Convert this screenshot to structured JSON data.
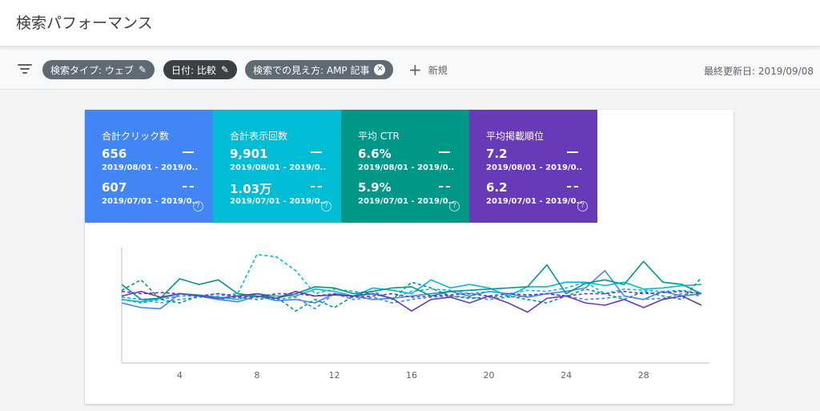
{
  "header": {
    "title": "検索パフォーマンス"
  },
  "filters": {
    "chips": [
      {
        "label": "検索タイプ: ウェブ",
        "icon": "pencil-icon",
        "color": "#5f6a74"
      },
      {
        "label": "日付: 比較",
        "icon": "pencil-icon",
        "color": "#3c4043"
      },
      {
        "label": "検索での見え方: AMP 記事",
        "icon": "close-circle-icon",
        "color": "#5f6a74"
      }
    ],
    "new_label": "新規",
    "last_updated": "最終更新日: 2019/09/08"
  },
  "metrics": [
    {
      "title": "合計クリック数",
      "value": "656",
      "range": "2019/08/01 - 2019/0...",
      "prev_value": "607",
      "prev_range": "2019/07/01 - 2019/0...",
      "color": "#4285f4"
    },
    {
      "title": "合計表示回数",
      "value": "9,901",
      "range": "2019/08/01 - 2019/0...",
      "prev_value": "1.03万",
      "prev_range": "2019/07/01 - 2019/0...",
      "color": "#00bcd4"
    },
    {
      "title": "平均 CTR",
      "value": "6.6%",
      "range": "2019/08/01 - 2019/0...",
      "prev_value": "5.9%",
      "prev_range": "2019/07/01 - 2019/0...",
      "color": "#009688"
    },
    {
      "title": "平均掲載順位",
      "value": "7.2",
      "range": "2019/08/01 - 2019/0...",
      "prev_value": "6.2",
      "prev_range": "2019/07/01 - 2019/0...",
      "color": "#673ab7"
    }
  ],
  "chart_data": {
    "type": "line",
    "x": [
      1,
      2,
      3,
      4,
      5,
      6,
      7,
      8,
      9,
      10,
      11,
      12,
      13,
      14,
      15,
      16,
      17,
      18,
      19,
      20,
      21,
      22,
      23,
      24,
      25,
      26,
      27,
      28,
      29,
      30,
      31
    ],
    "x_ticks": [
      "4",
      "8",
      "12",
      "16",
      "20",
      "24",
      "28"
    ],
    "x_tick_values": [
      4,
      8,
      12,
      16,
      20,
      24,
      28
    ],
    "ylim": [
      0,
      100
    ],
    "grid": false,
    "series": [
      {
        "color": "#4285f4",
        "style": "solid",
        "values": [
          52,
          48,
          47,
          60,
          58,
          55,
          53,
          58,
          54,
          55,
          52,
          60,
          58,
          55,
          56,
          58,
          60,
          62,
          58,
          62,
          60,
          57,
          60,
          62,
          65,
          80,
          58,
          55,
          62,
          58,
          60
        ]
      },
      {
        "color": "#4285f4",
        "style": "dashed",
        "values": [
          55,
          52,
          55,
          58,
          58,
          55,
          57,
          58,
          55,
          57,
          47,
          60,
          55,
          57,
          52,
          55,
          57,
          58,
          57,
          55,
          57,
          58,
          60,
          58,
          55,
          56,
          58,
          55,
          56,
          60,
          58
        ]
      },
      {
        "color": "#00bcd4",
        "style": "solid",
        "values": [
          55,
          53,
          56,
          60,
          59,
          57,
          55,
          60,
          58,
          58,
          64,
          62,
          58,
          65,
          63,
          60,
          72,
          65,
          68,
          65,
          58,
          66,
          66,
          70,
          70,
          67,
          70,
          64,
          65,
          67,
          68
        ]
      },
      {
        "color": "#00bcd4",
        "style": "dashed",
        "values": [
          57,
          55,
          52,
          55,
          57,
          58,
          60,
          94,
          92,
          80,
          60,
          64,
          62,
          60,
          56,
          62,
          64,
          63,
          60,
          62,
          60,
          63,
          62,
          65,
          70,
          60,
          64,
          63,
          62,
          63,
          60
        ]
      },
      {
        "color": "#009688",
        "style": "solid",
        "values": [
          68,
          55,
          56,
          73,
          68,
          72,
          60,
          58,
          56,
          60,
          66,
          65,
          60,
          62,
          65,
          66,
          58,
          62,
          63,
          64,
          65,
          66,
          85,
          60,
          69,
          72,
          68,
          88,
          70,
          68,
          60
        ]
      },
      {
        "color": "#009688",
        "style": "dashed",
        "values": [
          63,
          72,
          55,
          52,
          58,
          60,
          57,
          55,
          57,
          45,
          55,
          48,
          58,
          62,
          55,
          70,
          65,
          58,
          56,
          57,
          58,
          55,
          52,
          58,
          64,
          60,
          55,
          62,
          58,
          55,
          74
        ]
      },
      {
        "color": "#673ab7",
        "style": "solid",
        "values": [
          58,
          62,
          57,
          60,
          58,
          56,
          58,
          60,
          56,
          62,
          58,
          59,
          58,
          60,
          56,
          45,
          55,
          57,
          52,
          58,
          52,
          44,
          56,
          58,
          52,
          50,
          55,
          48,
          55,
          58,
          50
        ]
      },
      {
        "color": "#673ab7",
        "style": "dashed",
        "values": [
          62,
          60,
          61,
          60,
          58,
          60,
          58,
          57,
          60,
          60,
          58,
          60,
          57,
          58,
          60,
          57,
          58,
          59,
          60,
          58,
          60,
          59,
          60,
          58,
          60,
          60,
          62,
          60,
          61,
          62,
          60
        ]
      }
    ]
  }
}
